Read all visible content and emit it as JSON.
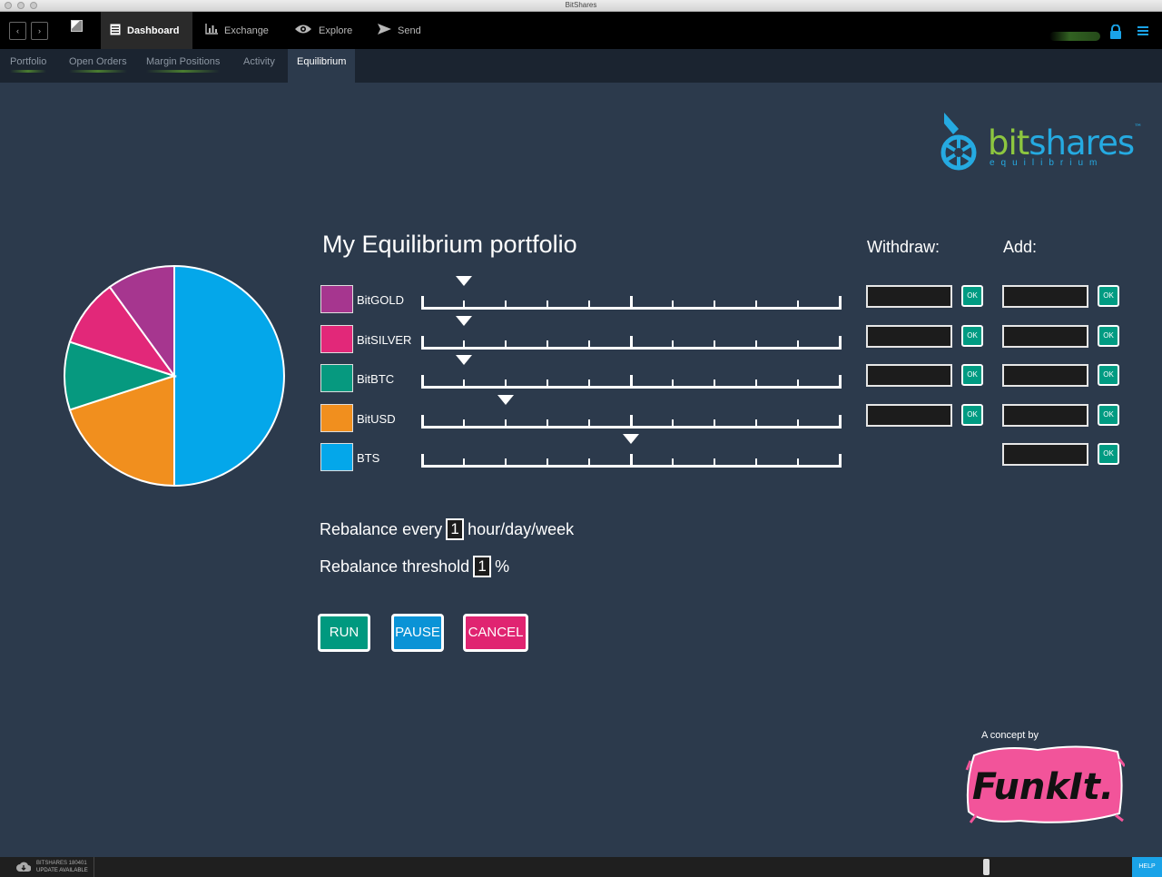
{
  "window": {
    "title": "BitShares"
  },
  "topnav": {
    "back": "‹",
    "forward": "›",
    "tabs": [
      {
        "label": "Dashboard",
        "icon": "dashboard-icon"
      },
      {
        "label": "Exchange",
        "icon": "chart-icon"
      },
      {
        "label": "Explore",
        "icon": "eye-icon"
      },
      {
        "label": "Send",
        "icon": "send-icon"
      }
    ],
    "active_tab": "Dashboard"
  },
  "subnav": {
    "tabs": [
      "Portfolio",
      "Open Orders",
      "Margin Positions",
      "Activity",
      "Equilibrium"
    ],
    "active_tab": "Equilibrium"
  },
  "logo": {
    "word_a": "bit",
    "word_b": "shares",
    "tm": "™",
    "sub": "equilibrium"
  },
  "portfolio": {
    "title": "My Equilibrium portfolio",
    "withdraw_label": "Withdraw:",
    "add_label": "Add:",
    "ok_label": "OK",
    "assets": [
      {
        "name": "BitGOLD",
        "color": "#a6368f",
        "slider_fraction": 0.1,
        "share": 0.1
      },
      {
        "name": "BitSILVER",
        "color": "#e22879",
        "slider_fraction": 0.1,
        "share": 0.1
      },
      {
        "name": "BitBTC",
        "color": "#06997f",
        "slider_fraction": 0.1,
        "share": 0.1
      },
      {
        "name": "BitUSD",
        "color": "#f18f1e",
        "slider_fraction": 0.2,
        "share": 0.2
      },
      {
        "name": "BTS",
        "color": "#04a7ea",
        "slider_fraction": 0.5,
        "share": 0.5
      }
    ]
  },
  "rebalance": {
    "every_label": "Rebalance every",
    "every_value": "1",
    "every_unit": "hour/day/week",
    "threshold_label": "Rebalance threshold",
    "threshold_value": "1",
    "threshold_unit": "%"
  },
  "actions": [
    {
      "label": "RUN",
      "color": "#00997f"
    },
    {
      "label": "PAUSE",
      "color": "#0a93d6"
    },
    {
      "label": "CANCEL",
      "color": "#e02471"
    }
  ],
  "credit": {
    "concept": "A concept by",
    "brand": "FunkIt."
  },
  "statusbar": {
    "version": "BITSHARES 180401",
    "update": "UPDATE AVAILABLE",
    "help": "HELP"
  }
}
